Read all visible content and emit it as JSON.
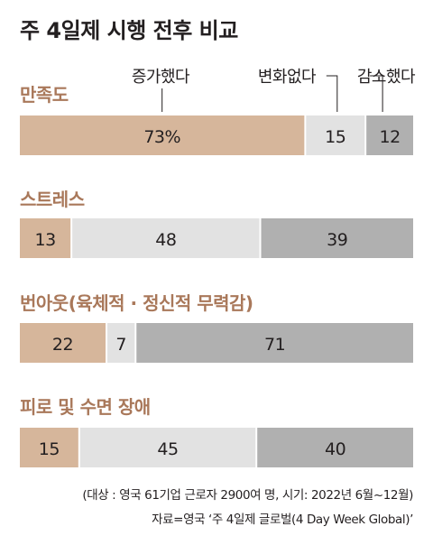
{
  "title": "주 4일제 시행 전후 비교",
  "colors": {
    "increased": "#d6b69b",
    "no_change": "#e2e2e2",
    "decreased": "#b0b0b0",
    "category_text": "#a9785a",
    "rule": "#b9b9b9"
  },
  "chart_data": {
    "type": "bar",
    "orientation": "horizontal-stacked-100",
    "series": [
      {
        "name": "증가했다",
        "key": "increased"
      },
      {
        "name": "변화없다",
        "key": "no_change"
      },
      {
        "name": "감소했다",
        "key": "decreased"
      }
    ],
    "categories": [
      {
        "label": "만족도",
        "values": [
          73,
          15,
          12
        ],
        "labels": [
          "73%",
          "15",
          "12"
        ]
      },
      {
        "label": "스트레스",
        "values": [
          13,
          48,
          39
        ],
        "labels": [
          "13",
          "48",
          "39"
        ]
      },
      {
        "label": "번아웃(육체적 · 정신적 무력감)",
        "values": [
          22,
          7,
          71
        ],
        "labels": [
          "22",
          "7",
          "71"
        ]
      },
      {
        "label": "피로 및 수면 장애",
        "values": [
          15,
          45,
          40
        ],
        "labels": [
          "15",
          "45",
          "40"
        ]
      }
    ],
    "unit": "%"
  },
  "footnote": {
    "line1": "(대상 : 영국 61기업 근로자 2900여 명, 시기: 2022년 6월~12월)",
    "line2": "자료=영국 ‘주 4일제 글로벌(4 Day Week Global)’"
  }
}
